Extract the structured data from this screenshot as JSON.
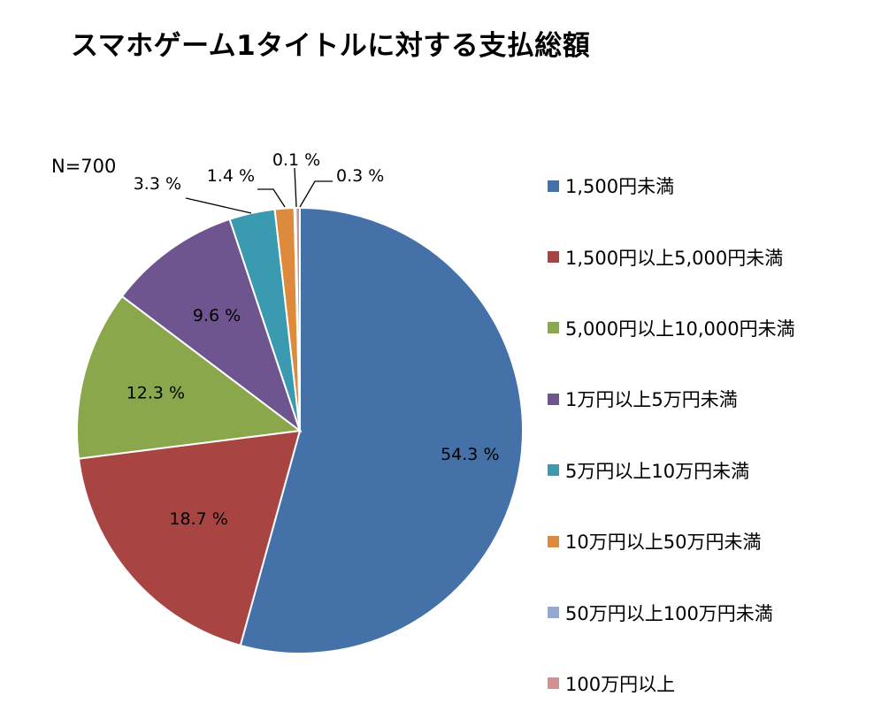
{
  "title": "スマホゲーム1タイトルに対する支払総額",
  "chart_data": {
    "type": "pie",
    "title": "スマホゲーム1タイトルに対する支払総額",
    "annotation": "N=700",
    "legend_position": "right",
    "slices": [
      {
        "label": "1,500円未満",
        "value": 54.3,
        "display": "54.3 %",
        "color": "#4472A8"
      },
      {
        "label": "1,500円以上5,000円未満",
        "value": 18.7,
        "display": "18.7 %",
        "color": "#A84542"
      },
      {
        "label": "5,000円以上10,000円未満",
        "value": 12.3,
        "display": "12.3 %",
        "color": "#8AA84B"
      },
      {
        "label": "1万円以上5万円未満",
        "value": 9.6,
        "display": "9.6 %",
        "color": "#6F5590"
      },
      {
        "label": "5万円以上10万円未満",
        "value": 3.3,
        "display": "3.3 %",
        "color": "#3A9AB0"
      },
      {
        "label": "10万円以上50万円未満",
        "value": 1.4,
        "display": "1.4 %",
        "color": "#DE8A3C"
      },
      {
        "label": "50万円以上100万円未満",
        "value": 0.1,
        "display": "0.1 %",
        "color": "#93A9D2"
      },
      {
        "label": "100万円以上",
        "value": 0.3,
        "display": "0.3 %",
        "color": "#D09392"
      }
    ]
  }
}
